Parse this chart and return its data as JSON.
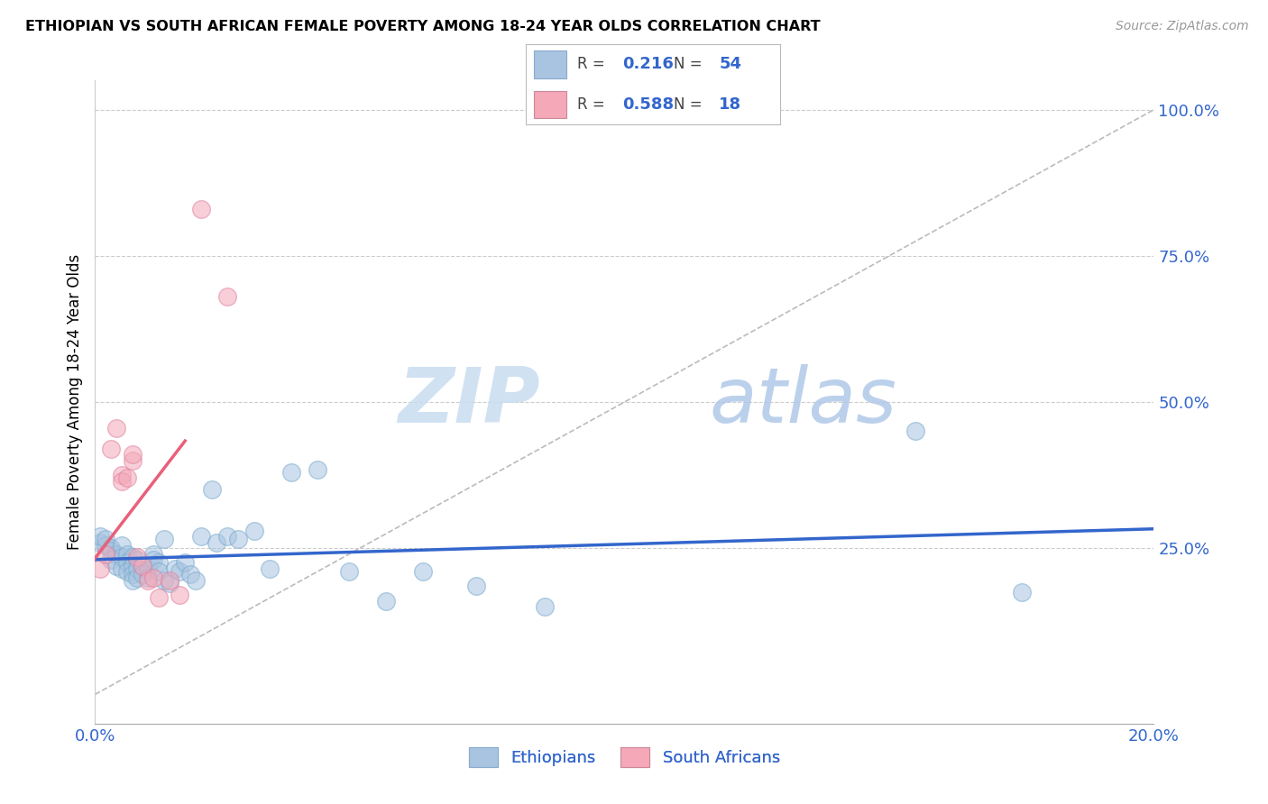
{
  "title": "ETHIOPIAN VS SOUTH AFRICAN FEMALE POVERTY AMONG 18-24 YEAR OLDS CORRELATION CHART",
  "source": "Source: ZipAtlas.com",
  "ylabel": "Female Poverty Among 18-24 Year Olds",
  "ylabel_right_ticks": [
    "100.0%",
    "75.0%",
    "50.0%",
    "25.0%"
  ],
  "ylabel_right_positions": [
    1.0,
    0.75,
    0.5,
    0.25
  ],
  "xlim": [
    0.0,
    0.2
  ],
  "ylim": [
    -0.05,
    1.05
  ],
  "legend_R_blue": "0.216",
  "legend_N_blue": "54",
  "legend_R_pink": "0.588",
  "legend_N_pink": "18",
  "blue_color": "#A8C4E0",
  "pink_color": "#F4A8B8",
  "blue_line_color": "#3366CC",
  "pink_line_color": "#E8607A",
  "diag_color": "#BBBBBB",
  "watermark_zip": "ZIP",
  "watermark_atlas": "atlas",
  "ethiopians_x": [
    0.001,
    0.001,
    0.002,
    0.002,
    0.003,
    0.003,
    0.003,
    0.004,
    0.004,
    0.005,
    0.005,
    0.005,
    0.006,
    0.006,
    0.006,
    0.007,
    0.007,
    0.007,
    0.007,
    0.008,
    0.008,
    0.008,
    0.009,
    0.009,
    0.01,
    0.01,
    0.011,
    0.011,
    0.012,
    0.012,
    0.013,
    0.013,
    0.014,
    0.015,
    0.016,
    0.017,
    0.018,
    0.019,
    0.02,
    0.022,
    0.023,
    0.025,
    0.027,
    0.03,
    0.033,
    0.037,
    0.042,
    0.048,
    0.055,
    0.062,
    0.072,
    0.085,
    0.155,
    0.175
  ],
  "ethiopians_y": [
    0.26,
    0.27,
    0.255,
    0.265,
    0.25,
    0.245,
    0.23,
    0.24,
    0.22,
    0.255,
    0.235,
    0.215,
    0.24,
    0.225,
    0.21,
    0.235,
    0.22,
    0.205,
    0.195,
    0.23,
    0.215,
    0.2,
    0.22,
    0.205,
    0.215,
    0.2,
    0.24,
    0.23,
    0.225,
    0.21,
    0.265,
    0.195,
    0.19,
    0.215,
    0.21,
    0.225,
    0.205,
    0.195,
    0.27,
    0.35,
    0.26,
    0.27,
    0.265,
    0.28,
    0.215,
    0.38,
    0.385,
    0.21,
    0.16,
    0.21,
    0.185,
    0.15,
    0.45,
    0.175
  ],
  "south_africans_x": [
    0.001,
    0.002,
    0.003,
    0.004,
    0.005,
    0.005,
    0.006,
    0.007,
    0.007,
    0.008,
    0.009,
    0.01,
    0.011,
    0.012,
    0.014,
    0.016,
    0.02,
    0.025
  ],
  "south_africans_y": [
    0.215,
    0.24,
    0.42,
    0.455,
    0.375,
    0.365,
    0.37,
    0.4,
    0.41,
    0.235,
    0.22,
    0.195,
    0.2,
    0.165,
    0.195,
    0.17,
    0.83,
    0.68
  ]
}
